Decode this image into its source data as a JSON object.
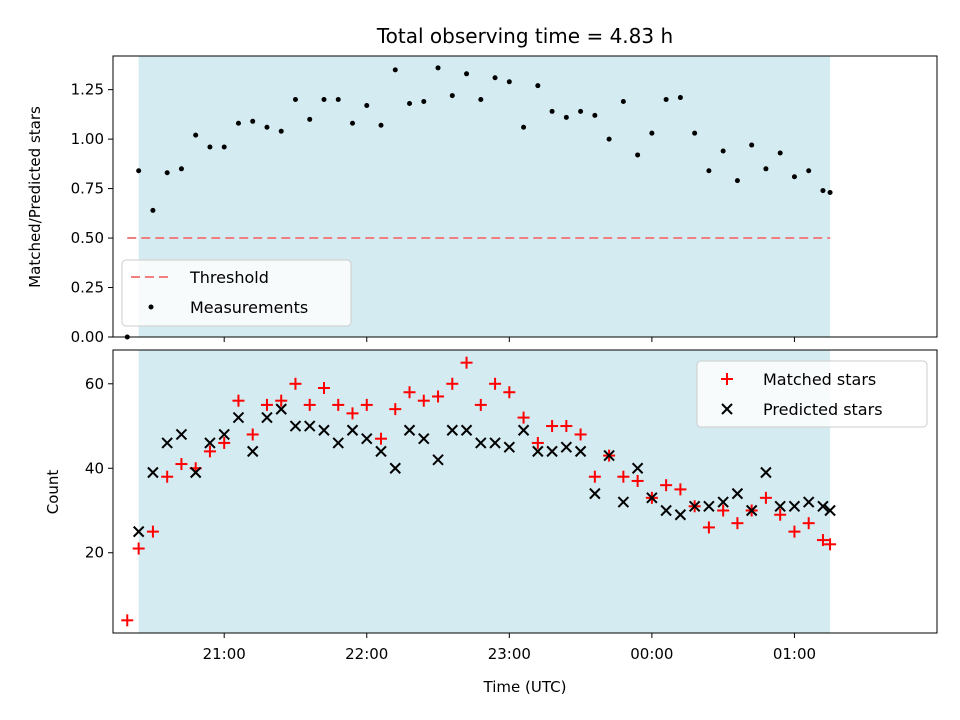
{
  "chart_data": [
    {
      "type": "scatter",
      "title": "Total observing time = 4.83 h",
      "xlabel": "",
      "ylabel": "Matched/Predicted stars",
      "ylim": [
        0,
        1.42
      ],
      "yticks": [
        "0.00",
        "0.25",
        "0.50",
        "0.75",
        "1.00",
        "1.25"
      ],
      "xlim": [
        -0.78,
        5.0
      ],
      "colors": {
        "band": "#d4ebf1",
        "threshold": "#f08080",
        "points": "#000000"
      },
      "threshold": {
        "name": "Threshold",
        "value": 0.5,
        "x_start": -0.68,
        "x_end": 4.25
      },
      "observing_window": [
        -0.6,
        4.25
      ],
      "legend_position": "lower-left",
      "series": [
        {
          "name": "Measurements",
          "x": [
            -0.68,
            -0.6,
            -0.5,
            -0.4,
            -0.3,
            -0.2,
            -0.1,
            0.0,
            0.1,
            0.2,
            0.3,
            0.4,
            0.5,
            0.6,
            0.7,
            0.8,
            0.9,
            1.0,
            1.1,
            1.2,
            1.3,
            1.4,
            1.5,
            1.6,
            1.7,
            1.8,
            1.9,
            2.0,
            2.1,
            2.2,
            2.3,
            2.4,
            2.5,
            2.6,
            2.7,
            2.8,
            2.9,
            3.0,
            3.1,
            3.2,
            3.3,
            3.4,
            3.5,
            3.6,
            3.7,
            3.8,
            3.9,
            4.0,
            4.1,
            4.2,
            4.25
          ],
          "y": [
            0.0,
            0.84,
            0.64,
            0.83,
            0.85,
            1.02,
            0.96,
            0.96,
            1.08,
            1.09,
            1.06,
            1.04,
            1.2,
            1.1,
            1.2,
            1.2,
            1.08,
            1.17,
            1.07,
            1.35,
            1.18,
            1.19,
            1.36,
            1.22,
            1.33,
            1.2,
            1.31,
            1.29,
            1.06,
            1.27,
            1.14,
            1.11,
            1.14,
            1.12,
            1.0,
            1.19,
            0.92,
            1.03,
            1.2,
            1.21,
            1.03,
            0.84,
            0.94,
            0.79,
            0.97,
            0.85,
            0.93,
            0.81,
            0.84,
            0.74,
            0.73
          ]
        }
      ]
    },
    {
      "type": "scatter",
      "title": "",
      "xlabel": "Time (UTC)",
      "ylabel": "Count",
      "ylim": [
        1,
        68
      ],
      "yticks": [
        "20",
        "40",
        "60"
      ],
      "xlim": [
        -0.78,
        5.0
      ],
      "xticks": [
        "21:00",
        "22:00",
        "23:00",
        "00:00",
        "01:00"
      ],
      "legend_position": "upper-right",
      "series": [
        {
          "name": "Matched stars",
          "color": "#ff0000",
          "marker": "plus",
          "x": [
            -0.68,
            -0.6,
            -0.5,
            -0.4,
            -0.3,
            -0.2,
            -0.1,
            0.0,
            0.1,
            0.2,
            0.3,
            0.4,
            0.5,
            0.6,
            0.7,
            0.8,
            0.9,
            1.0,
            1.1,
            1.2,
            1.3,
            1.4,
            1.5,
            1.6,
            1.7,
            1.8,
            1.9,
            2.0,
            2.1,
            2.2,
            2.3,
            2.4,
            2.5,
            2.6,
            2.7,
            2.8,
            2.9,
            3.0,
            3.1,
            3.2,
            3.3,
            3.4,
            3.5,
            3.6,
            3.7,
            3.8,
            3.9,
            4.0,
            4.1,
            4.2,
            4.25
          ],
          "y": [
            4,
            21,
            25,
            38,
            41,
            40,
            44,
            46,
            56,
            48,
            55,
            56,
            60,
            55,
            59,
            55,
            53,
            55,
            47,
            54,
            58,
            56,
            57,
            60,
            65,
            55,
            60,
            58,
            52,
            46,
            50,
            50,
            48,
            38,
            43,
            38,
            37,
            33,
            36,
            35,
            31,
            26,
            30,
            27,
            30,
            33,
            29,
            25,
            27,
            23,
            22
          ]
        },
        {
          "name": "Predicted stars",
          "color": "#000000",
          "marker": "x",
          "x": [
            -0.6,
            -0.5,
            -0.4,
            -0.3,
            -0.2,
            -0.1,
            0.0,
            0.1,
            0.2,
            0.3,
            0.4,
            0.5,
            0.6,
            0.7,
            0.8,
            0.9,
            1.0,
            1.1,
            1.2,
            1.3,
            1.4,
            1.5,
            1.6,
            1.7,
            1.8,
            1.9,
            2.0,
            2.1,
            2.2,
            2.3,
            2.4,
            2.5,
            2.6,
            2.7,
            2.8,
            2.9,
            3.0,
            3.1,
            3.2,
            3.3,
            3.4,
            3.5,
            3.6,
            3.7,
            3.8,
            3.9,
            4.0,
            4.1,
            4.2,
            4.25
          ],
          "y": [
            25,
            39,
            46,
            48,
            39,
            46,
            48,
            52,
            44,
            52,
            54,
            50,
            50,
            49,
            46,
            49,
            47,
            44,
            40,
            49,
            47,
            42,
            49,
            49,
            46,
            46,
            45,
            49,
            44,
            44,
            45,
            44,
            34,
            43,
            32,
            40,
            33,
            30,
            29,
            31,
            31,
            32,
            34,
            30,
            39,
            31,
            31,
            32,
            31,
            30
          ]
        }
      ]
    }
  ]
}
